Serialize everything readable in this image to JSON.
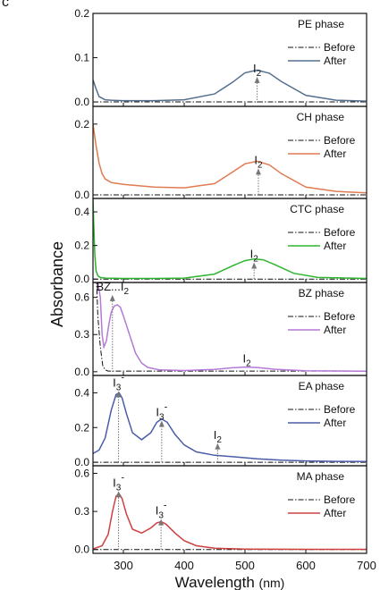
{
  "panel_letter": "c",
  "chart_data": {
    "type": "line",
    "xlabel": "Wavelength",
    "xlabel_unit": "(nm)",
    "ylabel": "Absorbance",
    "xlim": [
      250,
      700
    ],
    "xticks": [
      300,
      400,
      500,
      600,
      700
    ],
    "grid": false,
    "panels": [
      {
        "phase": "PE phase",
        "color": "#54708f",
        "ylim": [
          -0.01,
          0.2
        ],
        "yticks": [
          0.0,
          0.1,
          0.2
        ],
        "ytick_labels": [
          "0.0",
          "0.1",
          "0.2"
        ],
        "legend": [
          "Before",
          "After"
        ],
        "annotations": [
          {
            "label": "I",
            "sub": "2",
            "sup": "",
            "x": 520,
            "y": 0.057
          }
        ],
        "series": [
          {
            "name": "Before",
            "style": "dash-dot",
            "x": [
              250,
              700
            ],
            "y": [
              0.0,
              0.0
            ]
          },
          {
            "name": "After",
            "style": "solid",
            "x": [
              250,
              255,
              260,
              270,
              280,
              300,
              350,
              400,
              450,
              480,
              500,
              520,
              540,
              560,
              600,
              650,
              700
            ],
            "y": [
              0.05,
              0.03,
              0.012,
              0.005,
              0.004,
              0.003,
              0.003,
              0.005,
              0.018,
              0.045,
              0.066,
              0.072,
              0.065,
              0.046,
              0.015,
              0.004,
              0.002
            ]
          }
        ]
      },
      {
        "phase": "CH phase",
        "color": "#e07b52",
        "ylim": [
          -0.01,
          0.25
        ],
        "yticks": [
          0.0,
          0.2
        ],
        "ytick_labels": [
          "0.0",
          "0.2"
        ],
        "legend": [
          "Before",
          "After"
        ],
        "annotations": [
          {
            "label": "I",
            "sub": "2",
            "sup": "",
            "x": 522,
            "y": 0.075
          }
        ],
        "series": [
          {
            "name": "Before",
            "style": "dash-dot",
            "x": [
              250,
              700
            ],
            "y": [
              0.0,
              0.0
            ]
          },
          {
            "name": "After",
            "style": "solid",
            "x": [
              250,
              255,
              260,
              265,
              270,
              280,
              300,
              350,
              400,
              450,
              480,
              500,
              520,
              540,
              560,
              600,
              650,
              700
            ],
            "y": [
              0.2,
              0.14,
              0.09,
              0.06,
              0.045,
              0.035,
              0.03,
              0.022,
              0.02,
              0.032,
              0.065,
              0.088,
              0.095,
              0.085,
              0.06,
              0.022,
              0.01,
              0.006
            ]
          }
        ]
      },
      {
        "phase": "CTC phase",
        "color": "#2db52d",
        "ylim": [
          -0.02,
          0.48
        ],
        "yticks": [
          0.0,
          0.2,
          0.4
        ],
        "ytick_labels": [
          "0.0",
          "0.2",
          "0.4"
        ],
        "legend": [
          "Before",
          "After"
        ],
        "annotations": [
          {
            "label": "I",
            "sub": "2",
            "sup": "",
            "x": 515,
            "y": 0.1
          }
        ],
        "series": [
          {
            "name": "Before",
            "style": "dash-dot",
            "x": [
              250,
              700
            ],
            "y": [
              0.0,
              0.0
            ]
          },
          {
            "name": "After",
            "style": "solid",
            "x": [
              250,
              251,
              253,
              255,
              258,
              262,
              270,
              300,
              350,
              400,
              450,
              480,
              500,
              515,
              530,
              550,
              580,
              620,
              700
            ],
            "y": [
              0.48,
              0.35,
              0.15,
              0.05,
              0.02,
              0.01,
              0.006,
              0.004,
              0.004,
              0.006,
              0.03,
              0.08,
              0.11,
              0.12,
              0.115,
              0.085,
              0.035,
              0.01,
              0.004
            ]
          }
        ]
      },
      {
        "phase": "BZ phase",
        "color": "#b57ad6",
        "ylim": [
          -0.03,
          0.72
        ],
        "yticks": [
          0.0,
          0.3,
          0.6
        ],
        "ytick_labels": [
          "0.0",
          "0.3",
          "0.6"
        ],
        "legend": [
          "Before",
          "After"
        ],
        "annotations": [
          {
            "label": "BZ...I",
            "sub": "2",
            "sup": "",
            "x": 282,
            "y": 0.62
          },
          {
            "label": "I",
            "sub": "2",
            "sup": "",
            "x": 503,
            "y": 0.04
          }
        ],
        "series": [
          {
            "name": "Before",
            "style": "dash-dot",
            "x": [
              250,
              256,
              258,
              262,
              266,
              270,
              275,
              700
            ],
            "y": [
              0.72,
              0.72,
              0.45,
              0.2,
              0.05,
              0.015,
              0.005,
              0.005
            ]
          },
          {
            "name": "After",
            "style": "solid",
            "x": [
              250,
              254,
              258,
              262,
              265,
              268,
              272,
              276,
              280,
              285,
              290,
              295,
              300,
              310,
              320,
              330,
              340,
              360,
              400,
              450,
              480,
              500,
              520,
              550,
              600,
              700
            ],
            "y": [
              0.72,
              0.72,
              0.72,
              0.6,
              0.3,
              0.2,
              0.25,
              0.38,
              0.48,
              0.53,
              0.54,
              0.52,
              0.45,
              0.3,
              0.15,
              0.07,
              0.035,
              0.015,
              0.01,
              0.018,
              0.032,
              0.038,
              0.034,
              0.02,
              0.008,
              0.004
            ]
          }
        ]
      },
      {
        "phase": "EA phase",
        "color": "#4a5ca8",
        "ylim": [
          -0.02,
          0.5
        ],
        "yticks": [
          0.0,
          0.2,
          0.4
        ],
        "ytick_labels": [
          "0.0",
          "0.2",
          "0.4"
        ],
        "legend": [
          "Before",
          "After"
        ],
        "annotations": [
          {
            "label": "I",
            "sub": "3",
            "sup": "-",
            "x": 292,
            "y": 0.41
          },
          {
            "label": "I",
            "sub": "3",
            "sup": "-",
            "x": 363,
            "y": 0.24
          },
          {
            "label": "I",
            "sub": "2",
            "sup": "",
            "x": 455,
            "y": 0.11
          }
        ],
        "series": [
          {
            "name": "Before",
            "style": "dash-dot",
            "x": [
              250,
              700
            ],
            "y": [
              0.0,
              0.0
            ]
          },
          {
            "name": "After",
            "style": "solid",
            "x": [
              250,
              260,
              270,
              280,
              288,
              293,
              298,
              305,
              315,
              330,
              345,
              355,
              363,
              372,
              385,
              400,
              420,
              450,
              480,
              520,
              560,
              600,
              650,
              700
            ],
            "y": [
              0.05,
              0.07,
              0.14,
              0.3,
              0.39,
              0.4,
              0.37,
              0.28,
              0.17,
              0.13,
              0.17,
              0.23,
              0.25,
              0.23,
              0.16,
              0.1,
              0.06,
              0.04,
              0.032,
              0.02,
              0.012,
              0.008,
              0.005,
              0.004
            ]
          }
        ]
      },
      {
        "phase": "MA phase",
        "color": "#cf4040",
        "ylim": [
          -0.03,
          0.66
        ],
        "yticks": [
          0.0,
          0.3,
          0.6
        ],
        "ytick_labels": [
          "0.0",
          "0.3",
          "0.6"
        ],
        "legend": [
          "Before",
          "After"
        ],
        "annotations": [
          {
            "label": "I",
            "sub": "3",
            "sup": "-",
            "x": 292,
            "y": 0.46
          },
          {
            "label": "I",
            "sub": "3",
            "sup": "-",
            "x": 362,
            "y": 0.24
          }
        ],
        "series": [
          {
            "name": "Before",
            "style": "dash-dot",
            "x": [
              250,
              700
            ],
            "y": [
              0.0,
              0.0
            ]
          },
          {
            "name": "After",
            "style": "solid",
            "x": [
              250,
              265,
              275,
              282,
              288,
              293,
              298,
              305,
              315,
              330,
              345,
              355,
              362,
              370,
              385,
              400,
              420,
              450,
              500,
              600,
              700
            ],
            "y": [
              0.005,
              0.03,
              0.12,
              0.3,
              0.42,
              0.44,
              0.4,
              0.28,
              0.16,
              0.13,
              0.17,
              0.21,
              0.22,
              0.2,
              0.13,
              0.07,
              0.03,
              0.01,
              0.004,
              0.002,
              0.002
            ]
          }
        ]
      }
    ]
  }
}
